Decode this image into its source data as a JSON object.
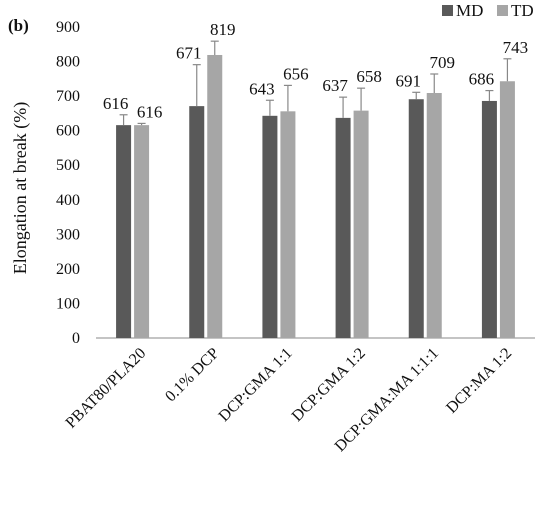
{
  "chart_data": {
    "type": "bar",
    "panel_label": "(b)",
    "ylabel": "Elongation at break (%)",
    "xlabel": "",
    "ylim": [
      0,
      900
    ],
    "yticks": [
      0,
      100,
      200,
      300,
      400,
      500,
      600,
      700,
      800,
      900
    ],
    "grid": false,
    "legend_position": "top-right",
    "categories": [
      "PBAT80/PLA20",
      "0.1% DCP",
      "DCP:GMA 1:1",
      "DCP:GMA 1:2",
      "DCP:GMA:MA 1:1:1",
      "DCP:MA 1:2"
    ],
    "series": [
      {
        "name": "MD",
        "color": "#595959",
        "values": [
          616,
          671,
          643,
          637,
          691,
          686
        ],
        "errors": [
          30,
          120,
          45,
          60,
          20,
          30
        ],
        "labels": [
          "616",
          "671",
          "643",
          "637",
          "691",
          "686"
        ]
      },
      {
        "name": "TD",
        "color": "#a6a6a6",
        "values": [
          616,
          819,
          656,
          658,
          709,
          743
        ],
        "errors": [
          5,
          40,
          75,
          65,
          55,
          65
        ],
        "labels": [
          "616",
          "819",
          "656",
          "658",
          "709",
          "743"
        ]
      }
    ]
  }
}
